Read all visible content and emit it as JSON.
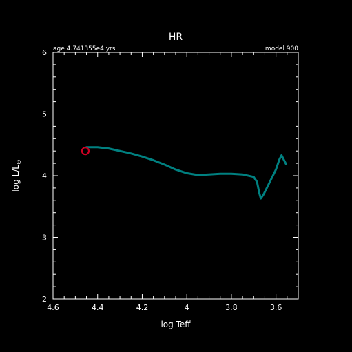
{
  "chart_data": {
    "type": "line",
    "title": "HR",
    "xlabel": "log Teff",
    "ylabel": "log L/L",
    "ylabel_sub": "⊙",
    "top_left_annotation": "age 4.741355e4 yrs",
    "top_right_annotation": "model 900",
    "xlim": [
      4.6,
      3.5
    ],
    "ylim": [
      2,
      6
    ],
    "x_ticks": [
      4.6,
      4.4,
      4.2,
      4.0,
      3.8,
      3.6
    ],
    "x_tick_labels": [
      "4.6",
      "4.4",
      "4.2",
      "4",
      "3.8",
      "3.6"
    ],
    "y_ticks": [
      2,
      3,
      4,
      5,
      6
    ],
    "y_tick_labels": [
      "2",
      "3",
      "4",
      "5",
      "6"
    ],
    "grid": false,
    "colors": {
      "background": "#000000",
      "axes": "#ffffff",
      "track": "#008080",
      "marker": "#cc0022"
    },
    "series": [
      {
        "x": [
          4.45,
          4.4,
          4.35,
          4.3,
          4.25,
          4.2,
          4.15,
          4.1,
          4.05,
          4.0,
          3.95,
          3.9,
          3.85,
          3.8,
          3.75,
          3.7,
          3.685,
          3.675,
          3.668,
          3.655,
          3.63,
          3.6,
          3.585,
          3.575,
          3.555
        ],
        "y": [
          4.46,
          4.46,
          4.44,
          4.4,
          4.36,
          4.31,
          4.25,
          4.18,
          4.1,
          4.04,
          4.01,
          4.02,
          4.03,
          4.03,
          4.02,
          3.98,
          3.9,
          3.72,
          3.63,
          3.7,
          3.88,
          4.1,
          4.26,
          4.33,
          4.19
        ]
      }
    ],
    "current_point": {
      "x": 4.455,
      "y": 4.4
    }
  }
}
